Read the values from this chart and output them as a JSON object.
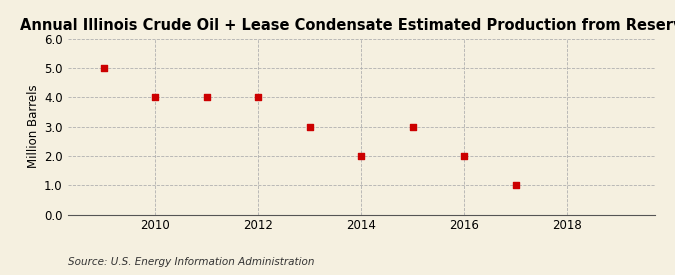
{
  "title": "Annual Illinois Crude Oil + Lease Condensate Estimated Production from Reserves",
  "ylabel": "Million Barrels",
  "source": "Source: U.S. Energy Information Administration",
  "x_values": [
    2009,
    2010,
    2011,
    2012,
    2013,
    2014,
    2015,
    2016,
    2017
  ],
  "y_values": [
    5.0,
    4.0,
    4.0,
    4.0,
    3.0,
    2.0,
    3.0,
    2.0,
    1.0
  ],
  "marker_color": "#cc0000",
  "marker_size": 4,
  "xlim": [
    2008.3,
    2019.7
  ],
  "ylim": [
    0.0,
    6.0
  ],
  "yticks": [
    0.0,
    1.0,
    2.0,
    3.0,
    4.0,
    5.0,
    6.0
  ],
  "xticks": [
    2010,
    2012,
    2014,
    2016,
    2018
  ],
  "background_color": "#f5f0e0",
  "grid_color": "#b0b0b0",
  "title_fontsize": 10.5,
  "label_fontsize": 8.5,
  "tick_fontsize": 8.5,
  "source_fontsize": 7.5
}
